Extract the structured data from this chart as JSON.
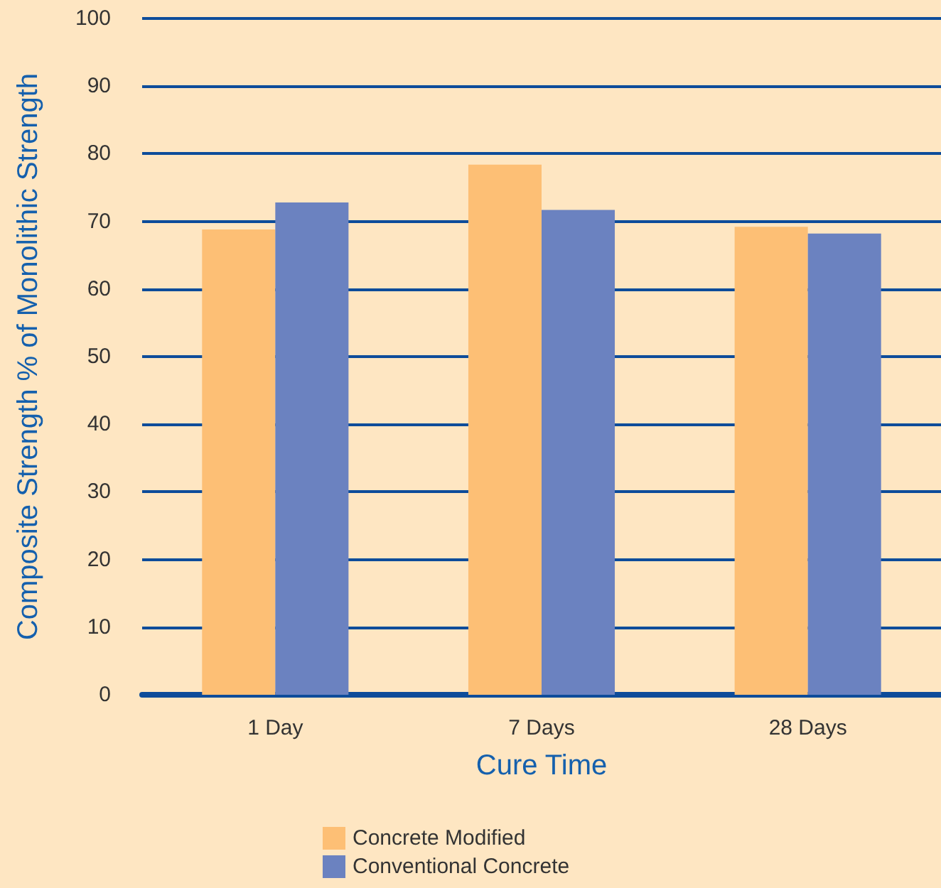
{
  "chart_data": {
    "type": "bar",
    "xlabel": "Cure Time",
    "ylabel": "Composite Strength % of Monolithic Strength",
    "categories": [
      "1 Day",
      "7 Days",
      "28 Days"
    ],
    "series": [
      {
        "name": "Concrete Modified",
        "color": "#fdbf75",
        "values": [
          68.8,
          78.4,
          69.2
        ]
      },
      {
        "name": "Conventional Concrete",
        "color": "#6b82c0",
        "values": [
          72.8,
          71.7,
          68.2
        ]
      }
    ],
    "ylim": [
      0,
      100
    ],
    "yticks": [
      0,
      10,
      20,
      30,
      40,
      50,
      60,
      70,
      80,
      90,
      100
    ],
    "grid": "y",
    "legend": "bottom"
  }
}
